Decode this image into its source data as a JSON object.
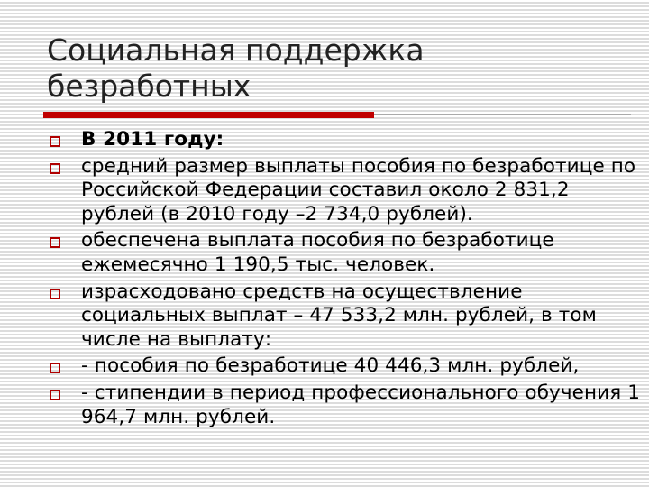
{
  "title": "Социальная поддержка\nбезработных",
  "accent_color": "#c00000",
  "bullet_icon": "hollow-square",
  "items": [
    {
      "text": "В 2011 году:",
      "bold": true
    },
    {
      "text": "средний размер выплаты пособия по безработице по Российской Федерации составил около 2 831,2 рублей (в 2010 году –2 734,0 рублей)."
    },
    {
      "text": "обеспечена выплата пособия по безработице ежемесячно 1 190,5 тыс. человек."
    },
    {
      "text": "израсходовано средств на осуществление социальных выплат – 47 533,2 млн. рублей, в том числе на выплату:"
    },
    {
      "text": "- пособия по безработице 40 446,3 млн. рублей,"
    },
    {
      "text": "- стипендии в период профессионального обучения 1 964,7 млн. рублей."
    }
  ]
}
